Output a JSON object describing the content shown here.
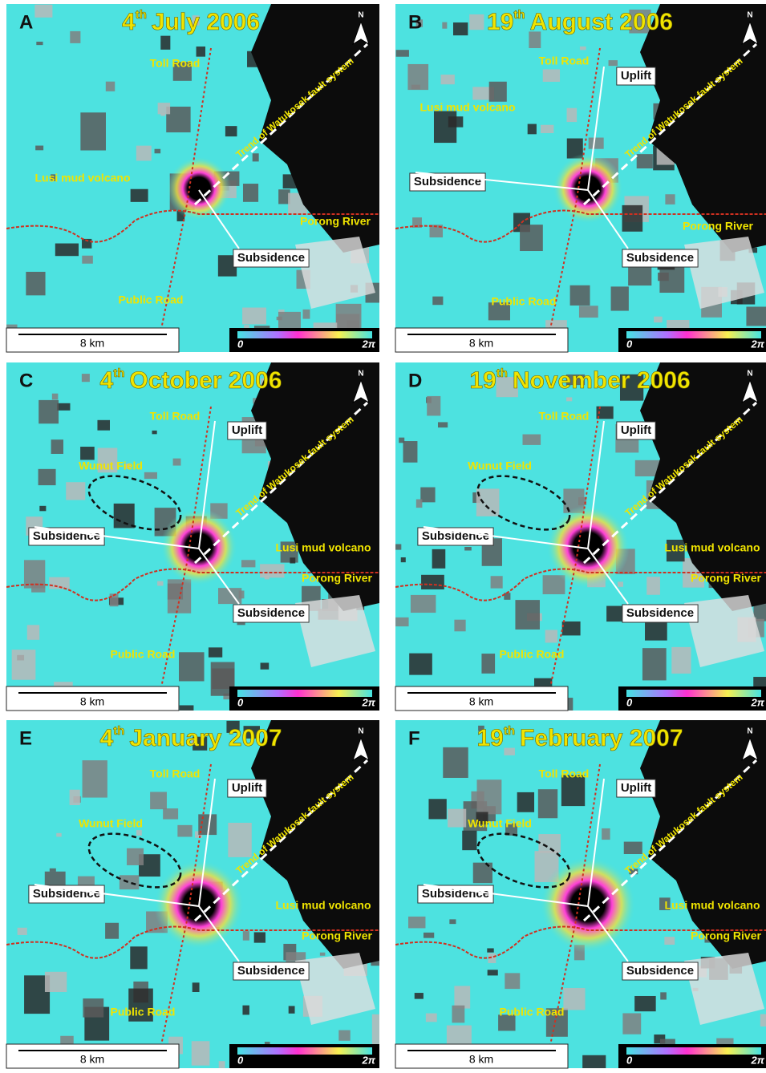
{
  "scale_label": "8 km",
  "colorbar": {
    "min_label": "0",
    "max_label": "2π"
  },
  "north_label": "N",
  "panels": [
    {
      "letter": "A",
      "day": "4",
      "suffix": "th",
      "month_year": "July 2006",
      "labels": [
        "Toll Road",
        "Trend of Watukosek fault system",
        "Lusi mud volcano",
        "Porong River",
        "Subsidence",
        "Public Road"
      ]
    },
    {
      "letter": "B",
      "day": "19",
      "suffix": "th",
      "month_year": "August 2006",
      "labels": [
        "Toll Road",
        "Uplift",
        "Lusi mud volcano",
        "Trend of Watukosek fault system",
        "Subsidence",
        "Porong River",
        "Subsidence",
        "Public Road"
      ]
    },
    {
      "letter": "C",
      "day": "4",
      "suffix": "th",
      "month_year": "October 2006",
      "labels": [
        "Toll Road",
        "Uplift",
        "Wunut Field",
        "Trend of Watukosek fault system",
        "Subsidence",
        "Lusi mud volcano",
        "Porong River",
        "Subsidence",
        "Public Road"
      ]
    },
    {
      "letter": "D",
      "day": "19",
      "suffix": "th",
      "month_year": "November 2006",
      "labels": [
        "Toll Road",
        "Uplift",
        "Wunut Field",
        "Trend of Watukosek fault system",
        "Subsidence",
        "Lusi mud volcano",
        "Porong River",
        "Subsidence",
        "Public Road"
      ]
    },
    {
      "letter": "E",
      "day": "4",
      "suffix": "th",
      "month_year": "January 2007",
      "labels": [
        "Toll Road",
        "Uplift",
        "Wunut Field",
        "Trend of Watukosek fault system",
        "Subsidence",
        "Lusi mud volcano",
        "Porong River",
        "Subsidence",
        "Public Road"
      ]
    },
    {
      "letter": "F",
      "day": "19",
      "suffix": "th",
      "month_year": "February 2007",
      "labels": [
        "Toll Road",
        "Uplift",
        "Wunut Field",
        "Trend of Watukosek fault system",
        "Subsidence",
        "Lusi mud volcano",
        "Porong River",
        "Subsidence",
        "Public Road"
      ]
    }
  ]
}
